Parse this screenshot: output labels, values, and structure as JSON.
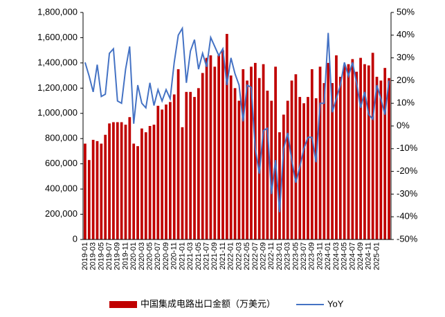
{
  "chart_data": {
    "type": "bar",
    "categories": [
      "2019-01",
      null,
      "2019-03",
      null,
      "2019-05",
      null,
      "2019-07",
      null,
      "2019-09",
      null,
      "2019-11",
      null,
      "2020-01",
      null,
      "2020-03",
      null,
      "2020-05",
      null,
      "2020-07",
      null,
      "2020-09",
      null,
      "2020-11",
      null,
      "2021-01",
      null,
      "2021-03",
      null,
      "2021-05",
      null,
      "2021-07",
      null,
      "2021-09",
      null,
      "2021-11",
      null,
      "2022-01",
      null,
      "2022-03",
      null,
      "2022-05",
      null,
      "2022-07",
      null,
      "2022-09",
      null,
      "2022-11",
      null,
      "2023-01",
      null,
      "2023-03",
      null,
      "2023-05",
      null,
      "2023-07",
      null,
      "2023-09",
      null,
      "2023-11",
      null,
      "2024-01",
      null,
      "2024-03",
      null,
      "2024-05",
      null,
      "2024-07",
      null,
      "2024-09",
      null,
      "2024-11",
      null,
      "2025-01",
      null,
      null,
      null
    ],
    "series": [
      {
        "name": "中国集成电路出口金额（万美元）",
        "type": "bar",
        "color": "#c00000",
        "values": [
          760000,
          630000,
          790000,
          780000,
          760000,
          830000,
          920000,
          930000,
          930000,
          930000,
          910000,
          970000,
          760000,
          740000,
          880000,
          850000,
          900000,
          910000,
          1060000,
          1030000,
          1070000,
          1090000,
          1150000,
          1350000,
          890000,
          1170000,
          1170000,
          1130000,
          1200000,
          1320000,
          1440000,
          1460000,
          1370000,
          1460000,
          1500000,
          1630000,
          1300000,
          1200000,
          1100000,
          1350000,
          1260000,
          1370000,
          1400000,
          1280000,
          1390000,
          1180000,
          1100000,
          1370000,
          850000,
          990000,
          1100000,
          1260000,
          1310000,
          1130000,
          1080000,
          1130000,
          1350000,
          1120000,
          1370000,
          1240000,
          1400000,
          1240000,
          1460000,
          1290000,
          1380000,
          1390000,
          1430000,
          1330000,
          1440000,
          1390000,
          1380000,
          1480000,
          1290000,
          1260000,
          1360000,
          1280000
        ]
      },
      {
        "name": "YoY",
        "type": "line",
        "axis": "y2",
        "color": "#4472c4",
        "values": [
          28,
          22,
          15,
          27,
          13,
          14,
          32,
          34,
          11,
          10,
          25,
          35,
          1,
          18,
          10,
          8,
          19,
          9,
          16,
          11,
          16,
          12,
          28,
          40,
          43,
          19,
          33,
          38,
          25,
          32,
          26,
          39,
          35,
          31,
          34,
          18,
          30,
          23,
          18,
          2,
          18,
          17,
          -10,
          -21,
          -2,
          -1,
          -30,
          -15,
          -38,
          -10,
          -3,
          -15,
          -25,
          -18,
          -10,
          -5,
          -5,
          -16,
          10,
          10,
          41,
          6,
          12,
          18,
          28,
          22,
          28,
          19,
          8,
          15,
          5,
          3,
          18,
          12,
          5,
          20
        ]
      }
    ],
    "ylim": [
      0,
      1800000
    ],
    "yticks": [
      0,
      {
        "value": 200000,
        "label": "200,000"
      },
      {
        "value": 400000,
        "label": "400,000"
      },
      {
        "value": 600000,
        "label": "600,000"
      },
      {
        "value": 800000,
        "label": "800,000"
      },
      {
        "value": 1000000,
        "label": "1,000,000"
      },
      {
        "value": 1200000,
        "label": "1,200,000"
      },
      {
        "value": 1400000,
        "label": "1,400,000"
      },
      {
        "value": 1600000,
        "label": "1,600,000"
      },
      {
        "value": 1800000,
        "label": "1,800,000"
      }
    ],
    "y2lim": [
      -50,
      50
    ],
    "y2ticks": [
      {
        "value": -50,
        "label": "-50%"
      },
      {
        "value": -40,
        "label": "-40%"
      },
      {
        "value": -30,
        "label": "-30%"
      },
      {
        "value": -20,
        "label": "-20%"
      },
      {
        "value": -10,
        "label": "-10%"
      },
      {
        "value": 0,
        "label": "0%"
      },
      {
        "value": 10,
        "label": "10%"
      },
      {
        "value": 20,
        "label": "20%"
      },
      {
        "value": 30,
        "label": "30%"
      },
      {
        "value": 40,
        "label": "40%"
      },
      {
        "value": 50,
        "label": "50%"
      }
    ],
    "legend": "bottom"
  }
}
